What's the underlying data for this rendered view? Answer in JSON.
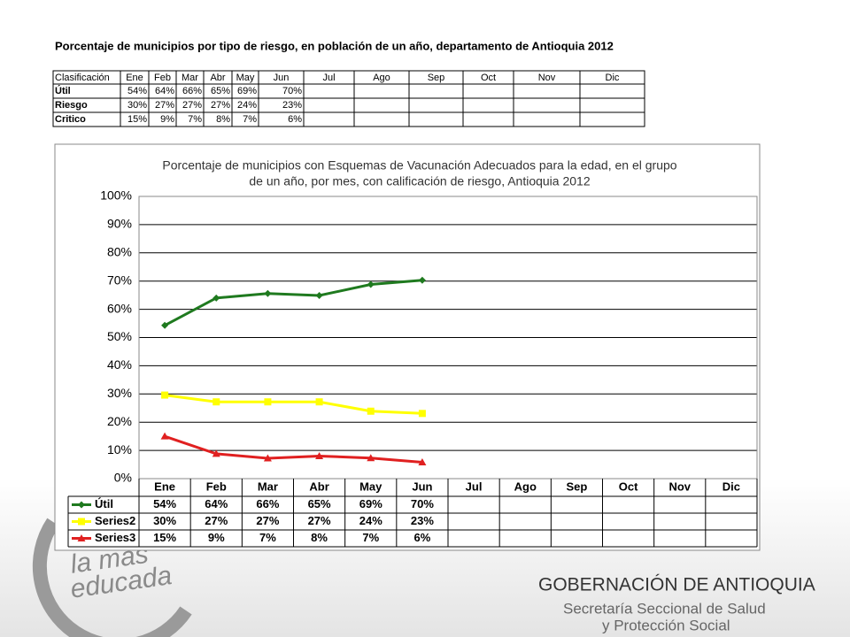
{
  "header": {
    "title": "Porcentaje de municipios por tipo de riesgo, en población de un año, departamento de Antioquia 2012"
  },
  "table": {
    "columns": [
      "Clasificación",
      "Ene",
      "Feb",
      "Mar",
      "Abr",
      "May",
      "Jun",
      "Jul",
      "Ago",
      "Sep",
      "Oct",
      "Nov",
      "Dic"
    ],
    "rows": [
      [
        "Útil",
        "54%",
        "64%",
        "66%",
        "65%",
        "69%",
        "70%"
      ],
      [
        "Riesgo",
        "30%",
        "27%",
        "27%",
        "27%",
        "24%",
        "23%"
      ],
      [
        "Critico",
        "15%",
        "9%",
        "7%",
        "8%",
        "7%",
        "6%"
      ]
    ]
  },
  "chart_data": {
    "type": "line",
    "title": [
      "Porcentaje de municipios con Esquemas de Vacunación Adecuados para la edad, en el grupo",
      "de un año, por mes, con calificación de riesgo, Antioquia 2012"
    ],
    "categories": [
      "Ene",
      "Feb",
      "Mar",
      "Abr",
      "May",
      "Jun",
      "Jul",
      "Ago",
      "Sep",
      "Oct",
      "Nov",
      "Dic"
    ],
    "series": [
      {
        "name": "Útil",
        "color": "#1f7a1f",
        "marker": "diamond",
        "values": [
          54.3,
          64,
          65.6,
          64.9,
          68.8,
          70.3,
          null,
          null,
          null,
          null,
          null,
          null
        ],
        "value_labels": [
          "54%",
          "64%",
          "66%",
          "65%",
          "69%",
          "70%",
          null,
          null,
          null,
          null,
          null,
          null
        ]
      },
      {
        "name": "Series2",
        "color": "#ffff00",
        "marker": "square",
        "values": [
          29.6,
          27.2,
          27.2,
          27.2,
          23.9,
          23.1,
          null,
          null,
          null,
          null,
          null,
          null
        ],
        "value_labels": [
          "30%",
          "27%",
          "27%",
          "27%",
          "24%",
          "23%",
          null,
          null,
          null,
          null,
          null,
          null
        ]
      },
      {
        "name": "Series3",
        "color": "#e02020",
        "marker": "triangle",
        "values": [
          15,
          8.8,
          7.2,
          8,
          7.3,
          5.8,
          null,
          null,
          null,
          null,
          null,
          null
        ],
        "value_labels": [
          "15%",
          "9%",
          "7%",
          "8%",
          "7%",
          "6%",
          null,
          null,
          null,
          null,
          null,
          null
        ]
      }
    ],
    "ylim": [
      0,
      100
    ],
    "yticks": [
      {
        "value": 0,
        "label": "0%"
      },
      {
        "value": 10,
        "label": "10%"
      },
      {
        "value": 20,
        "label": "20%"
      },
      {
        "value": 30,
        "label": "30%"
      },
      {
        "value": 40,
        "label": "40%"
      },
      {
        "value": 50,
        "label": "50%"
      },
      {
        "value": 60,
        "label": "60%"
      },
      {
        "value": 70,
        "label": "70%"
      },
      {
        "value": 80,
        "label": "80%"
      },
      {
        "value": 90,
        "label": "90%"
      },
      {
        "value": 100,
        "label": "100%"
      }
    ],
    "grid": true
  },
  "footer": {
    "slogan": [
      "la mas",
      "educada"
    ],
    "org": "GOBERNACIÓN DE ANTIOQUIA",
    "dept": [
      "Secretaría Seccional de Salud",
      "y Protección Social"
    ]
  }
}
